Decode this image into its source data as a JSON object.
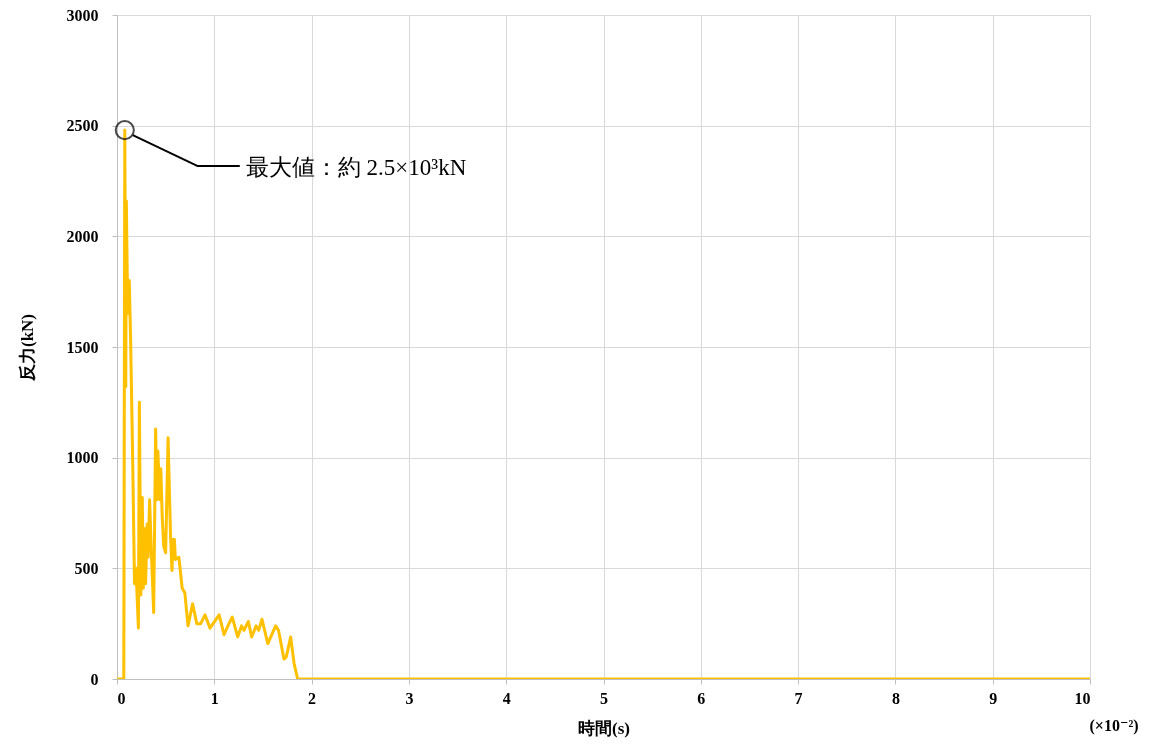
{
  "chart_data": {
    "type": "line",
    "xlabel": "時間(s)",
    "ylabel": "反力(kN)",
    "xlim": [
      0,
      10
    ],
    "xticks": [
      0,
      1,
      2,
      3,
      4,
      5,
      6,
      7,
      8,
      9,
      10
    ],
    "ylim": [
      0,
      3000
    ],
    "yticks": [
      0,
      500,
      {
        "value": 1000,
        "label": "1000"
      },
      {
        "value": 1500,
        "label": "1500"
      },
      {
        "value": 2000,
        "label": "2000"
      },
      {
        "value": 2500,
        "label": "2500"
      },
      {
        "value": 3000,
        "label": "3000"
      }
    ],
    "grid": true,
    "annotations": [
      "最大値：約 2.5×10³kN",
      "(×10⁻²)"
    ],
    "series": [
      {
        "color": "#ffc000",
        "x": [
          0,
          0.07,
          0.08,
          0.09,
          0.096,
          0.11,
          0.126,
          0.14,
          0.16,
          0.18,
          0.195,
          0.22,
          0.23,
          0.245,
          0.26,
          0.27,
          0.28,
          0.294,
          0.31,
          0.32,
          0.335,
          0.355,
          0.377,
          0.397,
          0.41,
          0.42,
          0.44,
          0.45,
          0.465,
          0.48,
          0.5,
          0.525,
          0.55,
          0.565,
          0.576,
          0.59,
          0.6,
          0.636,
          0.67,
          0.697,
          0.73,
          0.777,
          0.82,
          0.86,
          0.904,
          0.956,
          1.05,
          1.1,
          1.14,
          1.185,
          1.24,
          1.28,
          1.305,
          1.35,
          1.384,
          1.43,
          1.456,
          1.49,
          1.55,
          1.63,
          1.66,
          1.716,
          1.74,
          1.785,
          1.82,
          1.857,
          10
        ],
        "values": [
          0,
          0,
          2480,
          1320,
          2160,
          1650,
          1800,
          1530,
          1020,
          430,
          500,
          230,
          1250,
          380,
          820,
          410,
          680,
          430,
          700,
          550,
          810,
          550,
          300,
          1130,
          810,
          1030,
          810,
          950,
          730,
          600,
          570,
          1090,
          650,
          490,
          630,
          630,
          540,
          550,
          410,
          390,
          240,
          340,
          250,
          250,
          290,
          230,
          290,
          200,
          240,
          280,
          190,
          240,
          220,
          260,
          190,
          240,
          220,
          270,
          160,
          240,
          220,
          90,
          100,
          190,
          70,
          0,
          0
        ]
      }
    ]
  }
}
